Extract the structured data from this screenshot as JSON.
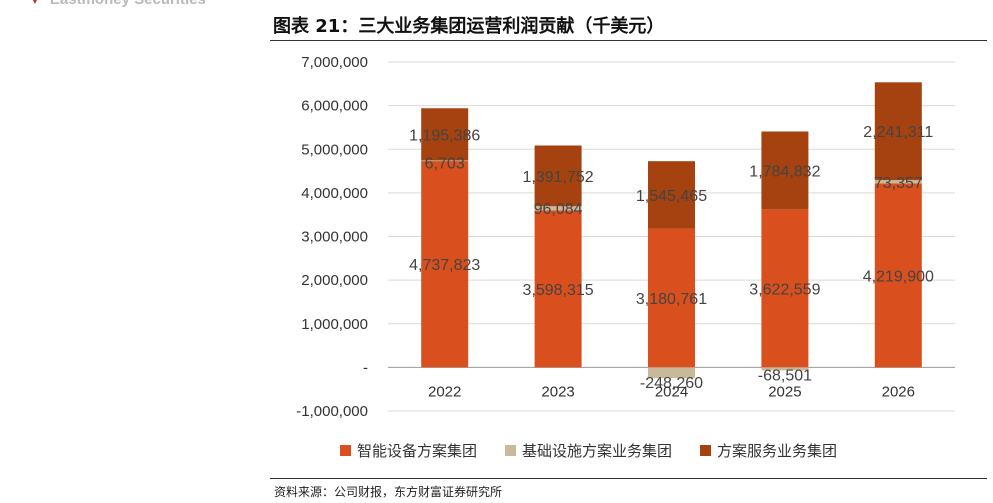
{
  "brand": {
    "name": "Eastmoney Securities",
    "icon": "triangle-down-icon"
  },
  "title": "图表 21：三大业务集团运营利润贡献（千美元）",
  "source": "资料来源：公司财报，东方财富证券研究所",
  "chart_data": {
    "type": "bar",
    "stacked": true,
    "title": "图表 21：三大业务集团运营利润贡献（千美元）",
    "categories": [
      "2022",
      "2023",
      "2024",
      "2025",
      "2026"
    ],
    "ylim": [
      -1000000,
      7000000
    ],
    "yticks": [
      {
        "value": 7000000,
        "label": "7,000,000"
      },
      {
        "value": 6000000,
        "label": "6,000,000"
      },
      {
        "value": 5000000,
        "label": "5,000,000"
      },
      {
        "value": 4000000,
        "label": "4,000,000"
      },
      {
        "value": 3000000,
        "label": "3,000,000"
      },
      {
        "value": 2000000,
        "label": "2,000,000"
      },
      {
        "value": 1000000,
        "label": "1,000,000"
      },
      {
        "value": 0,
        "label": "-"
      },
      {
        "value": -1000000,
        "label": "-1,000,000"
      }
    ],
    "grid": true,
    "legend_position": "bottom",
    "series": [
      {
        "name": "智能设备方案集团",
        "color": "#d94f1e",
        "values": [
          4737823,
          3598315,
          3180761,
          3622559,
          4219900
        ],
        "labels": [
          "4,737,823",
          "3,598,315",
          "3,180,761",
          "3,622,559",
          "4,219,900"
        ]
      },
      {
        "name": "基础设施方案业务集团",
        "color": "#c8b99a",
        "values": [
          6703,
          96084,
          -248260,
          -68501,
          73357
        ],
        "labels": [
          "6,703",
          "96,084",
          "-248,260",
          "-68,501",
          "73,357"
        ]
      },
      {
        "name": "方案服务业务集团",
        "color": "#a5420f",
        "values": [
          1195386,
          1391752,
          1545465,
          1784832,
          2241311
        ],
        "labels": [
          "1,195,386",
          "1,391,752",
          "1,545,465",
          "1,784,832",
          "2,241,311"
        ]
      }
    ]
  }
}
